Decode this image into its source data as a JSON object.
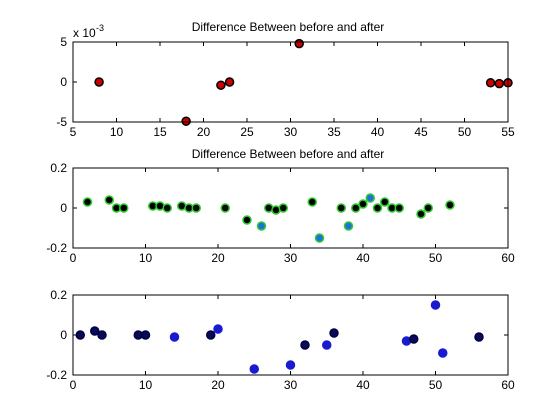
{
  "figure": {
    "background": "#ffffff"
  },
  "chart_data": [
    {
      "type": "scatter",
      "title": "Difference Between before and after",
      "xlim": [
        5,
        55
      ],
      "ylim": [
        -5,
        5
      ],
      "xticks": [
        5,
        10,
        15,
        20,
        25,
        30,
        35,
        40,
        45,
        50,
        55
      ],
      "yticks": [
        -5,
        0,
        5
      ],
      "exponent_label": "x 10^-3",
      "exponent_base": "x 10",
      "exponent_power": "-3",
      "grid": false,
      "points": [
        {
          "x": 8,
          "y": 0,
          "edge": "#000000",
          "fill": "#cc0000"
        },
        {
          "x": 18,
          "y": -4.9,
          "edge": "#000000",
          "fill": "#cc0000"
        },
        {
          "x": 22,
          "y": -0.4,
          "edge": "#000000",
          "fill": "#cc0000"
        },
        {
          "x": 23,
          "y": 0,
          "edge": "#000000",
          "fill": "#cc0000"
        },
        {
          "x": 31,
          "y": 4.8,
          "edge": "#000000",
          "fill": "#cc0000"
        },
        {
          "x": 53,
          "y": -0.1,
          "edge": "#000000",
          "fill": "#cc0000"
        },
        {
          "x": 54,
          "y": -0.2,
          "edge": "#000000",
          "fill": "#cc0000"
        },
        {
          "x": 55,
          "y": -0.1,
          "edge": "#000000",
          "fill": "#cc0000"
        }
      ]
    },
    {
      "type": "scatter",
      "title": "Difference Between before and after",
      "xlim": [
        0,
        60
      ],
      "ylim": [
        -0.2,
        0.2
      ],
      "xticks": [
        0,
        10,
        20,
        30,
        40,
        50,
        60
      ],
      "yticks": [
        -0.2,
        0,
        0.2
      ],
      "grid": false,
      "points": [
        {
          "x": 2,
          "y": 0.03,
          "edge": "#2ecc2e",
          "fill": "#000000"
        },
        {
          "x": 5,
          "y": 0.04,
          "edge": "#2ecc2e",
          "fill": "#000000"
        },
        {
          "x": 6,
          "y": 0.0,
          "edge": "#2ecc2e",
          "fill": "#000000"
        },
        {
          "x": 7,
          "y": 0.0,
          "edge": "#2ecc2e",
          "fill": "#000000"
        },
        {
          "x": 11,
          "y": 0.01,
          "edge": "#2ecc2e",
          "fill": "#000000"
        },
        {
          "x": 12,
          "y": 0.01,
          "edge": "#2ecc2e",
          "fill": "#000000"
        },
        {
          "x": 13,
          "y": 0.0,
          "edge": "#2ecc2e",
          "fill": "#000000"
        },
        {
          "x": 15,
          "y": 0.01,
          "edge": "#2ecc2e",
          "fill": "#000000"
        },
        {
          "x": 16,
          "y": 0.0,
          "edge": "#2ecc2e",
          "fill": "#000000"
        },
        {
          "x": 17,
          "y": 0.0,
          "edge": "#2ecc2e",
          "fill": "#000000"
        },
        {
          "x": 21,
          "y": 0.0,
          "edge": "#2ecc2e",
          "fill": "#000000"
        },
        {
          "x": 24,
          "y": -0.06,
          "edge": "#2ecc2e",
          "fill": "#000000"
        },
        {
          "x": 26,
          "y": -0.09,
          "edge": "#2ecc2e",
          "fill": "#1f6fe0"
        },
        {
          "x": 27,
          "y": 0.0,
          "edge": "#2ecc2e",
          "fill": "#000000"
        },
        {
          "x": 28,
          "y": -0.01,
          "edge": "#2ecc2e",
          "fill": "#000000"
        },
        {
          "x": 29,
          "y": 0.0,
          "edge": "#2ecc2e",
          "fill": "#000000"
        },
        {
          "x": 33,
          "y": 0.03,
          "edge": "#2ecc2e",
          "fill": "#000000"
        },
        {
          "x": 34,
          "y": -0.15,
          "edge": "#2ecc2e",
          "fill": "#1f6fe0"
        },
        {
          "x": 37,
          "y": 0.0,
          "edge": "#2ecc2e",
          "fill": "#000000"
        },
        {
          "x": 38,
          "y": -0.09,
          "edge": "#2ecc2e",
          "fill": "#1f6fe0"
        },
        {
          "x": 39,
          "y": 0.0,
          "edge": "#2ecc2e",
          "fill": "#000000"
        },
        {
          "x": 40,
          "y": 0.02,
          "edge": "#2ecc2e",
          "fill": "#000000"
        },
        {
          "x": 41,
          "y": 0.05,
          "edge": "#2ecc2e",
          "fill": "#1f6fe0"
        },
        {
          "x": 42,
          "y": 0.0,
          "edge": "#2ecc2e",
          "fill": "#000000"
        },
        {
          "x": 43,
          "y": 0.03,
          "edge": "#2ecc2e",
          "fill": "#000000"
        },
        {
          "x": 44,
          "y": 0.0,
          "edge": "#2ecc2e",
          "fill": "#000000"
        },
        {
          "x": 45,
          "y": 0.0,
          "edge": "#2ecc2e",
          "fill": "#000000"
        },
        {
          "x": 48,
          "y": -0.03,
          "edge": "#2ecc2e",
          "fill": "#000000"
        },
        {
          "x": 49,
          "y": 0.0,
          "edge": "#2ecc2e",
          "fill": "#000000"
        },
        {
          "x": 52,
          "y": 0.015,
          "edge": "#2ecc2e",
          "fill": "#000000"
        }
      ]
    },
    {
      "type": "scatter",
      "title": "",
      "xlim": [
        0,
        60
      ],
      "ylim": [
        -0.2,
        0.2
      ],
      "xticks": [
        0,
        10,
        20,
        30,
        40,
        50,
        60
      ],
      "yticks": [
        -0.2,
        0,
        0.2
      ],
      "grid": false,
      "points": [
        {
          "x": 1,
          "y": 0.0,
          "edge": "#000044",
          "fill": "#0a0a55"
        },
        {
          "x": 3,
          "y": 0.02,
          "edge": "#000044",
          "fill": "#0a0a55"
        },
        {
          "x": 4,
          "y": 0.0,
          "edge": "#000044",
          "fill": "#0a0a55"
        },
        {
          "x": 9,
          "y": 0.0,
          "edge": "#000044",
          "fill": "#0a0a55"
        },
        {
          "x": 10,
          "y": 0.0,
          "edge": "#000044",
          "fill": "#0a0a55"
        },
        {
          "x": 14,
          "y": -0.01,
          "edge": "#1a1ad0",
          "fill": "#1a1ad0"
        },
        {
          "x": 19,
          "y": 0.0,
          "edge": "#000044",
          "fill": "#0a0a55"
        },
        {
          "x": 20,
          "y": 0.03,
          "edge": "#1a1ad0",
          "fill": "#1a1ad0"
        },
        {
          "x": 25,
          "y": -0.17,
          "edge": "#1a1ad0",
          "fill": "#1a1ad0"
        },
        {
          "x": 30,
          "y": -0.15,
          "edge": "#1a1ad0",
          "fill": "#1a1ad0"
        },
        {
          "x": 32,
          "y": -0.05,
          "edge": "#000044",
          "fill": "#0a0a55"
        },
        {
          "x": 35,
          "y": -0.05,
          "edge": "#1a1ad0",
          "fill": "#1a1ad0"
        },
        {
          "x": 36,
          "y": 0.01,
          "edge": "#000044",
          "fill": "#0a0a55"
        },
        {
          "x": 46,
          "y": -0.03,
          "edge": "#1a1ad0",
          "fill": "#1a1ad0"
        },
        {
          "x": 47,
          "y": -0.02,
          "edge": "#000044",
          "fill": "#0a0a55"
        },
        {
          "x": 50,
          "y": 0.15,
          "edge": "#1a1ad0",
          "fill": "#1a1ad0"
        },
        {
          "x": 51,
          "y": -0.09,
          "edge": "#1a1ad0",
          "fill": "#1a1ad0"
        },
        {
          "x": 56,
          "y": -0.01,
          "edge": "#000044",
          "fill": "#0a0a55"
        }
      ]
    }
  ]
}
